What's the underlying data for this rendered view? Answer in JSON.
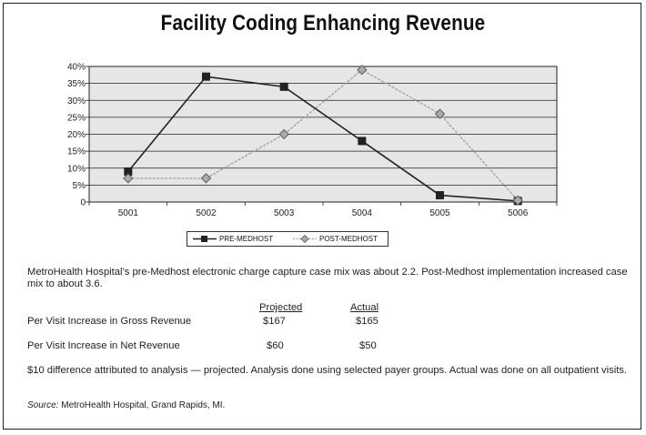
{
  "chart_data": {
    "type": "line",
    "title": "Facility Coding Enhancing Revenue",
    "categories": [
      "5001",
      "5002",
      "5003",
      "5004",
      "5005",
      "5006"
    ],
    "y_ticks": [
      "0",
      "5%",
      "10%",
      "15%",
      "20%",
      "25%",
      "30%",
      "35%",
      "40%"
    ],
    "ylim": [
      0,
      40
    ],
    "grid": true,
    "legend_position": "bottom",
    "series": [
      {
        "name": "PRE-MEDHOST",
        "values": [
          9,
          37,
          34,
          18,
          2,
          0.3
        ],
        "marker": "square",
        "color": "#222222"
      },
      {
        "name": "POST-MEDHOST",
        "values": [
          7,
          7,
          20,
          39,
          26,
          0.5
        ],
        "marker": "diamond",
        "color": "#999999"
      }
    ]
  },
  "summary": "MetroHealth Hospital’s pre-Medhost electronic charge capture case mix was about 2.2. Post-Medhost implementation increased case mix to about 3.6.",
  "table": {
    "headers": [
      "Projected",
      "Actual"
    ],
    "rows": [
      {
        "label": "Per Visit Increase in Gross Revenue",
        "projected": "$167",
        "actual": "$165"
      },
      {
        "label": "Per Visit Increase in Net Revenue",
        "projected": "$60",
        "actual": "$50"
      }
    ]
  },
  "note": "$10 difference attributed to analysis — projected. Analysis done using selected payer groups. Actual was done on all outpatient visits.",
  "source": {
    "label": "Source:",
    "text": " MetroHealth Hospital, Grand Rapids, MI."
  },
  "colors": {
    "plot_bg": "#e6e6e6",
    "grid": "#222222",
    "pre": "#222222",
    "post": "#999999"
  }
}
